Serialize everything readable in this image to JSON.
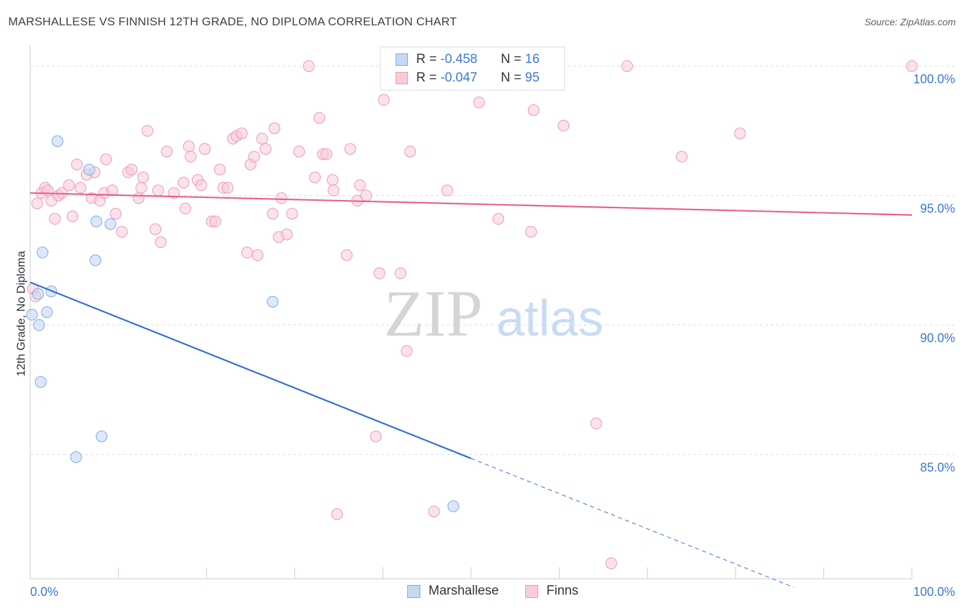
{
  "title": "MARSHALLESE VS FINNISH 12TH GRADE, NO DIPLOMA CORRELATION CHART",
  "source": "Source: ZipAtlas.com",
  "watermark": {
    "zip": "ZIP",
    "atlas": "atlas"
  },
  "legend": {
    "series1": {
      "r_label": "R = ",
      "r_value": "-0.458",
      "n_label": "N = ",
      "n_value": "16"
    },
    "series2": {
      "r_label": "R = ",
      "r_value": "-0.047",
      "n_label": "N = ",
      "n_value": "95"
    }
  },
  "bottom_legend": {
    "series1": "Marshallese",
    "series2": "Finns"
  },
  "colors": {
    "blue_fill": "#c5d9f5",
    "blue_stroke": "#7ea8e0",
    "blue_line": "#2f6fd0",
    "pink_fill": "#f9cbd8",
    "pink_stroke": "#eb9ab3",
    "pink_line": "#e8608b",
    "axis_text": "#3b78d8",
    "grid": "#dcdfe4"
  },
  "chart_data": {
    "type": "scatter",
    "title": "MARSHALLESE VS FINNISH 12TH GRADE, NO DIPLOMA CORRELATION CHART",
    "xlabel": "",
    "ylabel": "12th Grade, No Diploma",
    "xlim": [
      0,
      100
    ],
    "ylim": [
      80.2,
      100.7
    ],
    "x_tick_labels": [
      "0.0%",
      "100.0%"
    ],
    "y_ticks": [
      100,
      95,
      90,
      85
    ],
    "y_tick_labels": [
      "100.0%",
      "95.0%",
      "90.0%",
      "85.0%"
    ],
    "grid": true,
    "legend_position": "top-center",
    "series": [
      {
        "name": "Marshallese",
        "R": -0.458,
        "N": 16,
        "trend": {
          "x0": 0,
          "y0": 91.65,
          "x1": 50,
          "y1": 84.85,
          "dashed_to_x": 86.6
        },
        "points": [
          [
            0.2,
            90.4
          ],
          [
            0.9,
            91.2
          ],
          [
            1.0,
            90.0
          ],
          [
            1.2,
            87.8
          ],
          [
            1.4,
            92.8
          ],
          [
            1.9,
            90.5
          ],
          [
            2.4,
            91.3
          ],
          [
            3.1,
            97.1
          ],
          [
            5.2,
            84.9
          ],
          [
            6.7,
            96.0
          ],
          [
            7.5,
            94.0
          ],
          [
            8.1,
            85.7
          ],
          [
            7.4,
            92.5
          ],
          [
            9.1,
            93.9
          ],
          [
            27.5,
            90.9
          ],
          [
            48.0,
            83.0
          ]
        ]
      },
      {
        "name": "Finns",
        "R": -0.047,
        "N": 95,
        "trend": {
          "x0": 0,
          "y0": 95.1,
          "x1": 100,
          "y1": 94.25
        },
        "points": [
          [
            0.3,
            91.4
          ],
          [
            0.6,
            91.1
          ],
          [
            0.8,
            94.7
          ],
          [
            1.3,
            95.1
          ],
          [
            1.7,
            95.3
          ],
          [
            2.0,
            95.2
          ],
          [
            2.4,
            94.8
          ],
          [
            2.8,
            94.1
          ],
          [
            3.2,
            95.0
          ],
          [
            3.6,
            95.1
          ],
          [
            4.4,
            95.4
          ],
          [
            4.8,
            94.2
          ],
          [
            5.3,
            96.2
          ],
          [
            5.7,
            95.3
          ],
          [
            6.4,
            95.8
          ],
          [
            7.0,
            94.9
          ],
          [
            7.3,
            95.9
          ],
          [
            7.9,
            94.8
          ],
          [
            8.4,
            95.1
          ],
          [
            8.6,
            96.4
          ],
          [
            9.3,
            95.2
          ],
          [
            9.7,
            94.3
          ],
          [
            10.4,
            93.6
          ],
          [
            11.1,
            95.9
          ],
          [
            11.5,
            96.0
          ],
          [
            12.3,
            94.9
          ],
          [
            12.6,
            95.3
          ],
          [
            12.8,
            95.7
          ],
          [
            13.3,
            97.5
          ],
          [
            14.2,
            93.7
          ],
          [
            14.5,
            95.2
          ],
          [
            14.8,
            93.2
          ],
          [
            15.5,
            96.7
          ],
          [
            16.3,
            95.1
          ],
          [
            17.4,
            95.5
          ],
          [
            17.6,
            94.5
          ],
          [
            18.0,
            96.9
          ],
          [
            18.2,
            96.5
          ],
          [
            19.0,
            95.6
          ],
          [
            19.4,
            95.4
          ],
          [
            19.8,
            96.8
          ],
          [
            20.6,
            94.0
          ],
          [
            21.0,
            94.0
          ],
          [
            21.5,
            96.0
          ],
          [
            21.9,
            95.3
          ],
          [
            22.4,
            95.3
          ],
          [
            23.0,
            97.2
          ],
          [
            23.4,
            97.3
          ],
          [
            24.0,
            97.4
          ],
          [
            24.6,
            92.8
          ],
          [
            25.0,
            96.2
          ],
          [
            25.4,
            96.5
          ],
          [
            25.8,
            92.7
          ],
          [
            26.3,
            97.2
          ],
          [
            26.7,
            96.8
          ],
          [
            27.5,
            94.3
          ],
          [
            27.7,
            97.6
          ],
          [
            28.2,
            93.4
          ],
          [
            28.5,
            94.9
          ],
          [
            29.1,
            93.5
          ],
          [
            29.7,
            94.3
          ],
          [
            30.5,
            96.7
          ],
          [
            31.6,
            100.0
          ],
          [
            32.3,
            95.7
          ],
          [
            32.8,
            98.0
          ],
          [
            33.2,
            96.6
          ],
          [
            33.6,
            96.6
          ],
          [
            34.3,
            95.6
          ],
          [
            34.4,
            95.2
          ],
          [
            35.9,
            92.7
          ],
          [
            36.3,
            96.8
          ],
          [
            37.1,
            94.8
          ],
          [
            37.4,
            95.4
          ],
          [
            38.1,
            95.0
          ],
          [
            39.6,
            92.0
          ],
          [
            40.1,
            98.7
          ],
          [
            42.0,
            92.0
          ],
          [
            42.7,
            89.0
          ],
          [
            43.1,
            96.7
          ],
          [
            47.3,
            95.2
          ],
          [
            50.9,
            98.6
          ],
          [
            53.1,
            94.1
          ],
          [
            55.4,
            100.0
          ],
          [
            56.8,
            93.6
          ],
          [
            57.1,
            98.3
          ],
          [
            60.5,
            97.7
          ],
          [
            64.2,
            86.2
          ],
          [
            67.7,
            100.0
          ],
          [
            73.9,
            96.5
          ],
          [
            80.5,
            97.4
          ],
          [
            34.8,
            82.7
          ],
          [
            45.8,
            82.8
          ],
          [
            39.2,
            85.7
          ],
          [
            65.9,
            80.8
          ],
          [
            100.0,
            100.0
          ]
        ]
      }
    ]
  }
}
